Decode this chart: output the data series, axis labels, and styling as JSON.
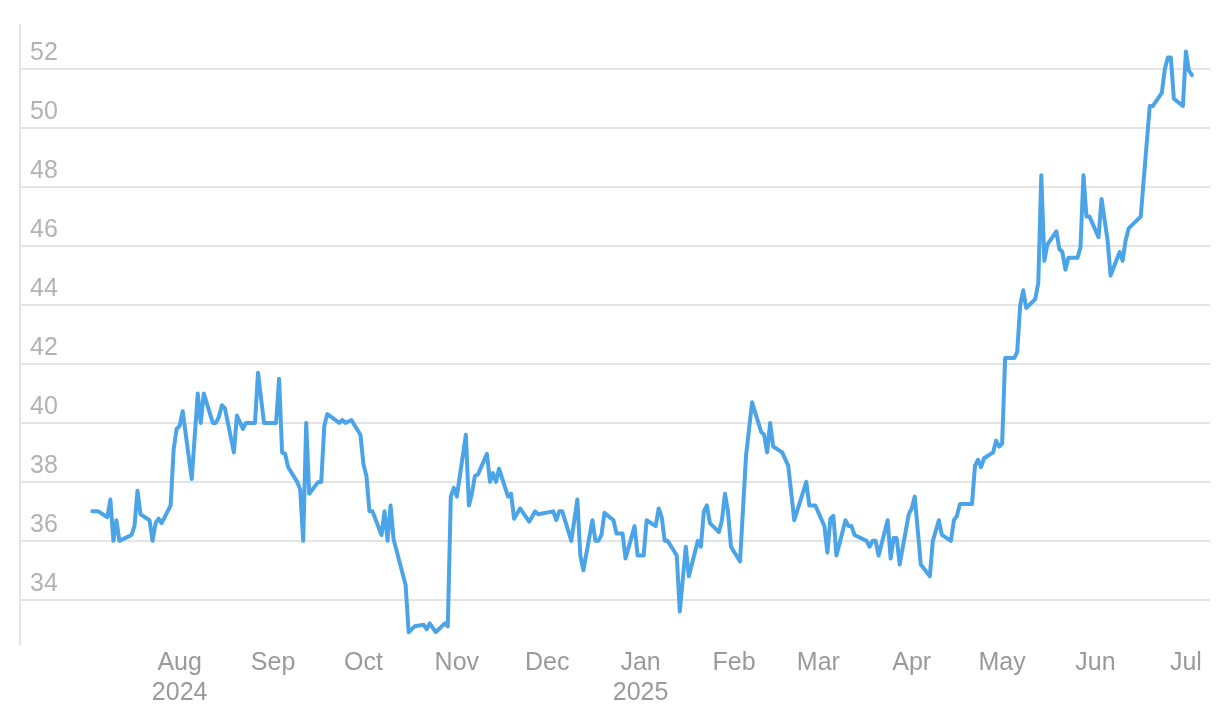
{
  "chart_data": {
    "type": "line",
    "grid": "y",
    "legend": false,
    "marker": "none",
    "line_style": "solid",
    "xlim": [
      "2024-06-09",
      "2025-07-09"
    ],
    "xticks": [
      {
        "value": "2024-08-01",
        "label": "Aug 2024"
      },
      {
        "value": "2024-09-01",
        "label": "Sep"
      },
      {
        "value": "2024-10-01",
        "label": "Oct"
      },
      {
        "value": "2024-11-01",
        "label": "Nov"
      },
      {
        "value": "2024-12-01",
        "label": "Dec"
      },
      {
        "value": "2025-01-01",
        "label": "Jan 2025"
      },
      {
        "value": "2025-02-01",
        "label": "Feb"
      },
      {
        "value": "2025-03-01",
        "label": "Mar"
      },
      {
        "value": "2025-04-01",
        "label": "Apr"
      },
      {
        "value": "2025-05-01",
        "label": "May"
      },
      {
        "value": "2025-06-01",
        "label": "Jun"
      },
      {
        "value": "2025-07-01",
        "label": "Jul"
      }
    ],
    "ylim": [
      32.5,
      53.5
    ],
    "yticks": [
      34,
      36,
      38,
      40,
      42,
      44,
      46,
      48,
      50,
      52
    ],
    "x": [
      "2024-07-03",
      "2024-07-05",
      "2024-07-08",
      "2024-07-09",
      "2024-07-10",
      "2024-07-11",
      "2024-07-12",
      "2024-07-16",
      "2024-07-17",
      "2024-07-18",
      "2024-07-19",
      "2024-07-22",
      "2024-07-23",
      "2024-07-24",
      "2024-07-25",
      "2024-07-26",
      "2024-07-29",
      "2024-07-30",
      "2024-07-31",
      "2024-08-01",
      "2024-08-02",
      "2024-08-05",
      "2024-08-07",
      "2024-08-08",
      "2024-08-09",
      "2024-08-12",
      "2024-08-13",
      "2024-08-14",
      "2024-08-15",
      "2024-08-16",
      "2024-08-19",
      "2024-08-20",
      "2024-08-22",
      "2024-08-23",
      "2024-08-26",
      "2024-08-27",
      "2024-08-29",
      "2024-09-02",
      "2024-09-03",
      "2024-09-04",
      "2024-09-05",
      "2024-09-06",
      "2024-09-09",
      "2024-09-10",
      "2024-09-11",
      "2024-09-12",
      "2024-09-13",
      "2024-09-16",
      "2024-09-17",
      "2024-09-18",
      "2024-09-19",
      "2024-09-23",
      "2024-09-24",
      "2024-09-25",
      "2024-09-27",
      "2024-09-30",
      "2024-10-01",
      "2024-10-02",
      "2024-10-03",
      "2024-10-04",
      "2024-10-07",
      "2024-10-08",
      "2024-10-09",
      "2024-10-10",
      "2024-10-11",
      "2024-10-15",
      "2024-10-16",
      "2024-10-18",
      "2024-10-21",
      "2024-10-22",
      "2024-10-23",
      "2024-10-25",
      "2024-10-28",
      "2024-10-29",
      "2024-10-30",
      "2024-10-31",
      "2024-11-01",
      "2024-11-04",
      "2024-11-05",
      "2024-11-06",
      "2024-11-07",
      "2024-11-08",
      "2024-11-11",
      "2024-11-12",
      "2024-11-13",
      "2024-11-14",
      "2024-11-15",
      "2024-11-18",
      "2024-11-19",
      "2024-11-20",
      "2024-11-22",
      "2024-11-25",
      "2024-11-27",
      "2024-11-28",
      "2024-12-03",
      "2024-12-04",
      "2024-12-05",
      "2024-12-06",
      "2024-12-09",
      "2024-12-11",
      "2024-12-12",
      "2024-12-13",
      "2024-12-16",
      "2024-12-17",
      "2024-12-18",
      "2024-12-19",
      "2024-12-20",
      "2024-12-23",
      "2024-12-24",
      "2024-12-26",
      "2024-12-27",
      "2024-12-30",
      "2024-12-31",
      "2025-01-02",
      "2025-01-03",
      "2025-01-06",
      "2025-01-07",
      "2025-01-08",
      "2025-01-09",
      "2025-01-10",
      "2025-01-13",
      "2025-01-14",
      "2025-01-16",
      "2025-01-17",
      "2025-01-20",
      "2025-01-21",
      "2025-01-22",
      "2025-01-23",
      "2025-01-24",
      "2025-01-27",
      "2025-01-28",
      "2025-01-29",
      "2025-01-30",
      "2025-01-31",
      "2025-02-03",
      "2025-02-05",
      "2025-02-07",
      "2025-02-10",
      "2025-02-11",
      "2025-02-12",
      "2025-02-13",
      "2025-02-14",
      "2025-02-17",
      "2025-02-19",
      "2025-02-21",
      "2025-02-25",
      "2025-02-26",
      "2025-02-28",
      "2025-03-03",
      "2025-03-04",
      "2025-03-05",
      "2025-03-06",
      "2025-03-07",
      "2025-03-10",
      "2025-03-11",
      "2025-03-12",
      "2025-03-13",
      "2025-03-17",
      "2025-03-18",
      "2025-03-19",
      "2025-03-20",
      "2025-03-21",
      "2025-03-24",
      "2025-03-25",
      "2025-03-26",
      "2025-03-27",
      "2025-03-28",
      "2025-03-31",
      "2025-04-01",
      "2025-04-02",
      "2025-04-04",
      "2025-04-07",
      "2025-04-08",
      "2025-04-10",
      "2025-04-11",
      "2025-04-14",
      "2025-04-15",
      "2025-04-16",
      "2025-04-17",
      "2025-04-21",
      "2025-04-22",
      "2025-04-23",
      "2025-04-24",
      "2025-04-25",
      "2025-04-28",
      "2025-04-29",
      "2025-04-30",
      "2025-05-01",
      "2025-05-02",
      "2025-05-05",
      "2025-05-06",
      "2025-05-07",
      "2025-05-08",
      "2025-05-09",
      "2025-05-12",
      "2025-05-13",
      "2025-05-14",
      "2025-05-15",
      "2025-05-16",
      "2025-05-19",
      "2025-05-20",
      "2025-05-21",
      "2025-05-22",
      "2025-05-23",
      "2025-05-26",
      "2025-05-27",
      "2025-05-28",
      "2025-05-29",
      "2025-05-30",
      "2025-06-02",
      "2025-06-03",
      "2025-06-05",
      "2025-06-06",
      "2025-06-09",
      "2025-06-10",
      "2025-06-11",
      "2025-06-12",
      "2025-06-13",
      "2025-06-16",
      "2025-06-19",
      "2025-06-20",
      "2025-06-23",
      "2025-06-24",
      "2025-06-25",
      "2025-06-26",
      "2025-06-27",
      "2025-06-30",
      "2025-07-01",
      "2025-07-02",
      "2025-07-03"
    ],
    "series": [
      {
        "color": "#4ba4e7",
        "values": [
          37.0,
          37.0,
          36.8,
          37.4,
          36.0,
          36.7,
          36.0,
          36.2,
          36.5,
          37.7,
          36.9,
          36.7,
          36.0,
          36.6,
          36.75,
          36.6,
          37.2,
          39.1,
          39.8,
          39.9,
          40.4,
          38.1,
          41.0,
          40.0,
          41.0,
          40.0,
          40.0,
          40.2,
          40.6,
          40.5,
          39.0,
          40.25,
          39.8,
          40.0,
          40.0,
          41.7,
          40.0,
          40.0,
          41.5,
          39.0,
          38.95,
          38.5,
          38.0,
          37.75,
          36.0,
          40.0,
          37.6,
          38.0,
          38.0,
          39.9,
          40.3,
          40.0,
          40.1,
          40.0,
          40.1,
          39.6,
          38.6,
          38.2,
          37.0,
          37.0,
          36.2,
          37.0,
          36.0,
          37.2,
          36.05,
          34.5,
          32.9,
          33.1,
          33.15,
          33.0,
          33.2,
          32.9,
          33.2,
          33.1,
          37.5,
          37.8,
          37.5,
          39.6,
          37.2,
          37.6,
          38.2,
          38.25,
          38.95,
          38.0,
          38.3,
          38.0,
          38.45,
          37.5,
          37.6,
          36.75,
          37.1,
          36.65,
          37.0,
          36.9,
          37.0,
          36.7,
          37.0,
          37.0,
          36.0,
          37.4,
          35.5,
          35.0,
          36.7,
          36.0,
          36.0,
          36.2,
          36.95,
          36.7,
          36.25,
          36.25,
          35.4,
          36.5,
          35.5,
          35.5,
          36.7,
          36.5,
          37.1,
          36.8,
          36.0,
          36.0,
          35.5,
          33.6,
          35.8,
          34.8,
          36.0,
          35.8,
          37.0,
          37.2,
          36.6,
          36.3,
          36.7,
          37.6,
          37.0,
          35.8,
          35.3,
          38.9,
          40.7,
          39.7,
          39.6,
          39.0,
          40.0,
          39.2,
          39.0,
          38.55,
          36.7,
          38.0,
          37.2,
          37.2,
          36.5,
          35.6,
          36.75,
          36.85,
          35.5,
          36.7,
          36.5,
          36.5,
          36.2,
          36.0,
          35.8,
          36.0,
          36.0,
          35.5,
          36.7,
          35.4,
          36.1,
          36.1,
          35.2,
          36.9,
          37.1,
          37.5,
          35.2,
          34.8,
          36.0,
          36.7,
          36.2,
          36.0,
          36.7,
          36.85,
          37.25,
          37.25,
          38.55,
          38.75,
          38.5,
          38.8,
          39.0,
          39.4,
          39.2,
          39.3,
          42.2,
          42.2,
          42.4,
          44.0,
          44.5,
          43.9,
          44.2,
          44.75,
          48.4,
          45.5,
          46.05,
          46.5,
          45.9,
          45.8,
          45.2,
          45.6,
          45.6,
          45.95,
          48.4,
          47.0,
          47.0,
          46.3,
          47.6,
          46.2,
          45.0,
          45.8,
          45.5,
          46.2,
          46.6,
          46.7,
          47.0,
          50.75,
          50.75,
          51.2,
          52.0,
          52.4,
          52.4,
          51.0,
          50.75,
          52.6,
          51.95,
          51.8
        ]
      }
    ]
  }
}
